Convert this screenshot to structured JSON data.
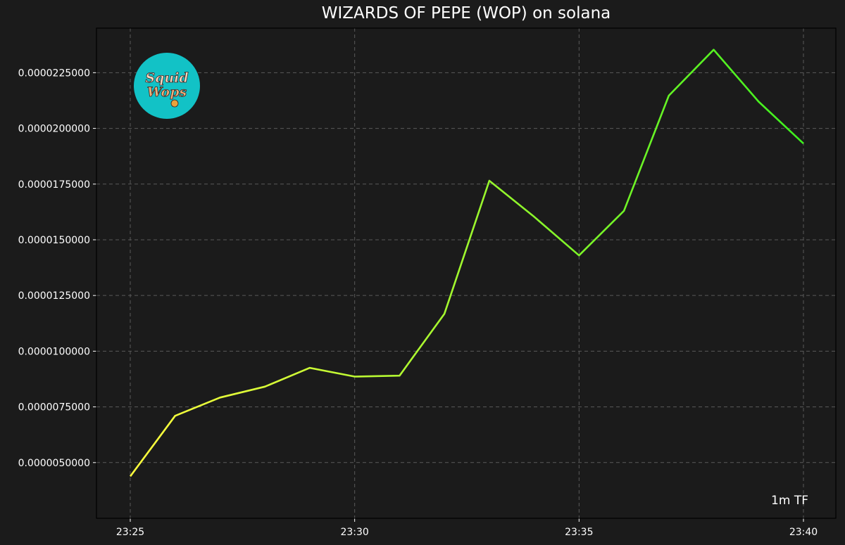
{
  "chart_data": {
    "type": "line",
    "title": "WIZARDS OF PEPE (WOP) on solana",
    "xlabel": "",
    "ylabel": "",
    "x": [
      "23:25",
      "23:26",
      "23:27",
      "23:28",
      "23:29",
      "23:30",
      "23:31",
      "23:32",
      "23:33",
      "23:34",
      "23:35",
      "23:36",
      "23:37",
      "23:38",
      "23:39",
      "23:40"
    ],
    "values": [
      4.38e-06,
      7.1e-06,
      7.92e-06,
      8.41e-06,
      9.25e-06,
      8.86e-06,
      8.9e-06,
      1.168e-05,
      1.765e-05,
      1.603e-05,
      1.43e-05,
      1.63e-05,
      2.147e-05,
      2.353e-05,
      2.12e-05,
      1.932e-05
    ],
    "x_ticks": [
      "23:25",
      "23:30",
      "23:35",
      "23:40"
    ],
    "y_ticks": [
      "0.0000050000",
      "0.0000075000",
      "0.0000100000",
      "0.0000125000",
      "0.0000150000",
      "0.0000175000",
      "0.0000200000",
      "0.0000225000"
    ],
    "y_tick_values": [
      5e-06,
      7.5e-06,
      1e-05,
      1.25e-05,
      1.5e-05,
      1.75e-05,
      2e-05,
      2.25e-05
    ],
    "ylim": [
      2.5e-06,
      2.45e-05
    ],
    "grid": true,
    "line_color_start": "#ffff3d",
    "line_color_end": "#3df01e",
    "background": "#1b1b1b"
  },
  "annotation": {
    "timeframe": "1m TF"
  },
  "logo": {
    "icon": "squid-wops-logo-icon",
    "text_line1": "Squid",
    "text_line2": "Wops",
    "color": "#12c2c6"
  }
}
